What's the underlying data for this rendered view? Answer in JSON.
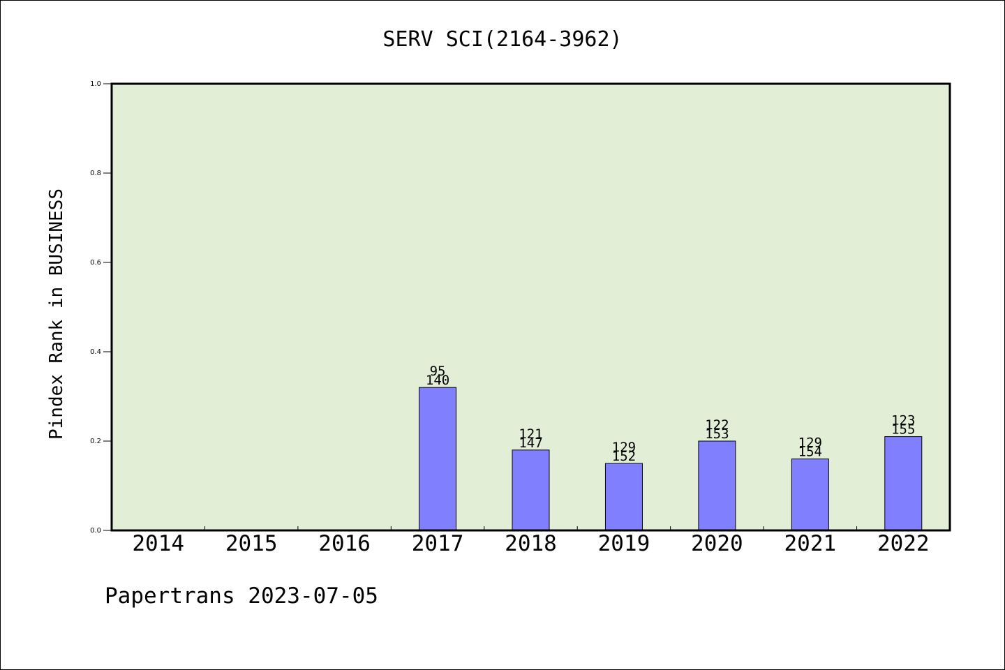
{
  "chart_data": {
    "type": "bar",
    "title": "SERV SCI(2164-3962)",
    "ylabel": "Pindex Rank in BUSINESS",
    "xlabel": "",
    "footer": "Papertrans 2023-07-05",
    "ylim": [
      0,
      1.0
    ],
    "yticks": [
      "0.0",
      "0.2",
      "0.4",
      "0.6",
      "0.8",
      "1.0"
    ],
    "ytick_values": [
      0.0,
      0.2,
      0.4,
      0.6,
      0.8,
      1.0
    ],
    "categories": [
      "2014",
      "2015",
      "2016",
      "2017",
      "2018",
      "2019",
      "2020",
      "2021",
      "2022"
    ],
    "values": [
      null,
      null,
      null,
      0.32,
      0.18,
      0.15,
      0.2,
      0.16,
      0.21
    ],
    "label_top": [
      "",
      "",
      "",
      "95",
      "121",
      "129",
      "122",
      "129",
      "123"
    ],
    "label_bottom": [
      "",
      "",
      "",
      "140",
      "147",
      "152",
      "153",
      "154",
      "155"
    ],
    "colors": {
      "plot_bg": "#e2efd6",
      "bar": "#8080ff",
      "axis": "#000000"
    },
    "grid": false
  }
}
